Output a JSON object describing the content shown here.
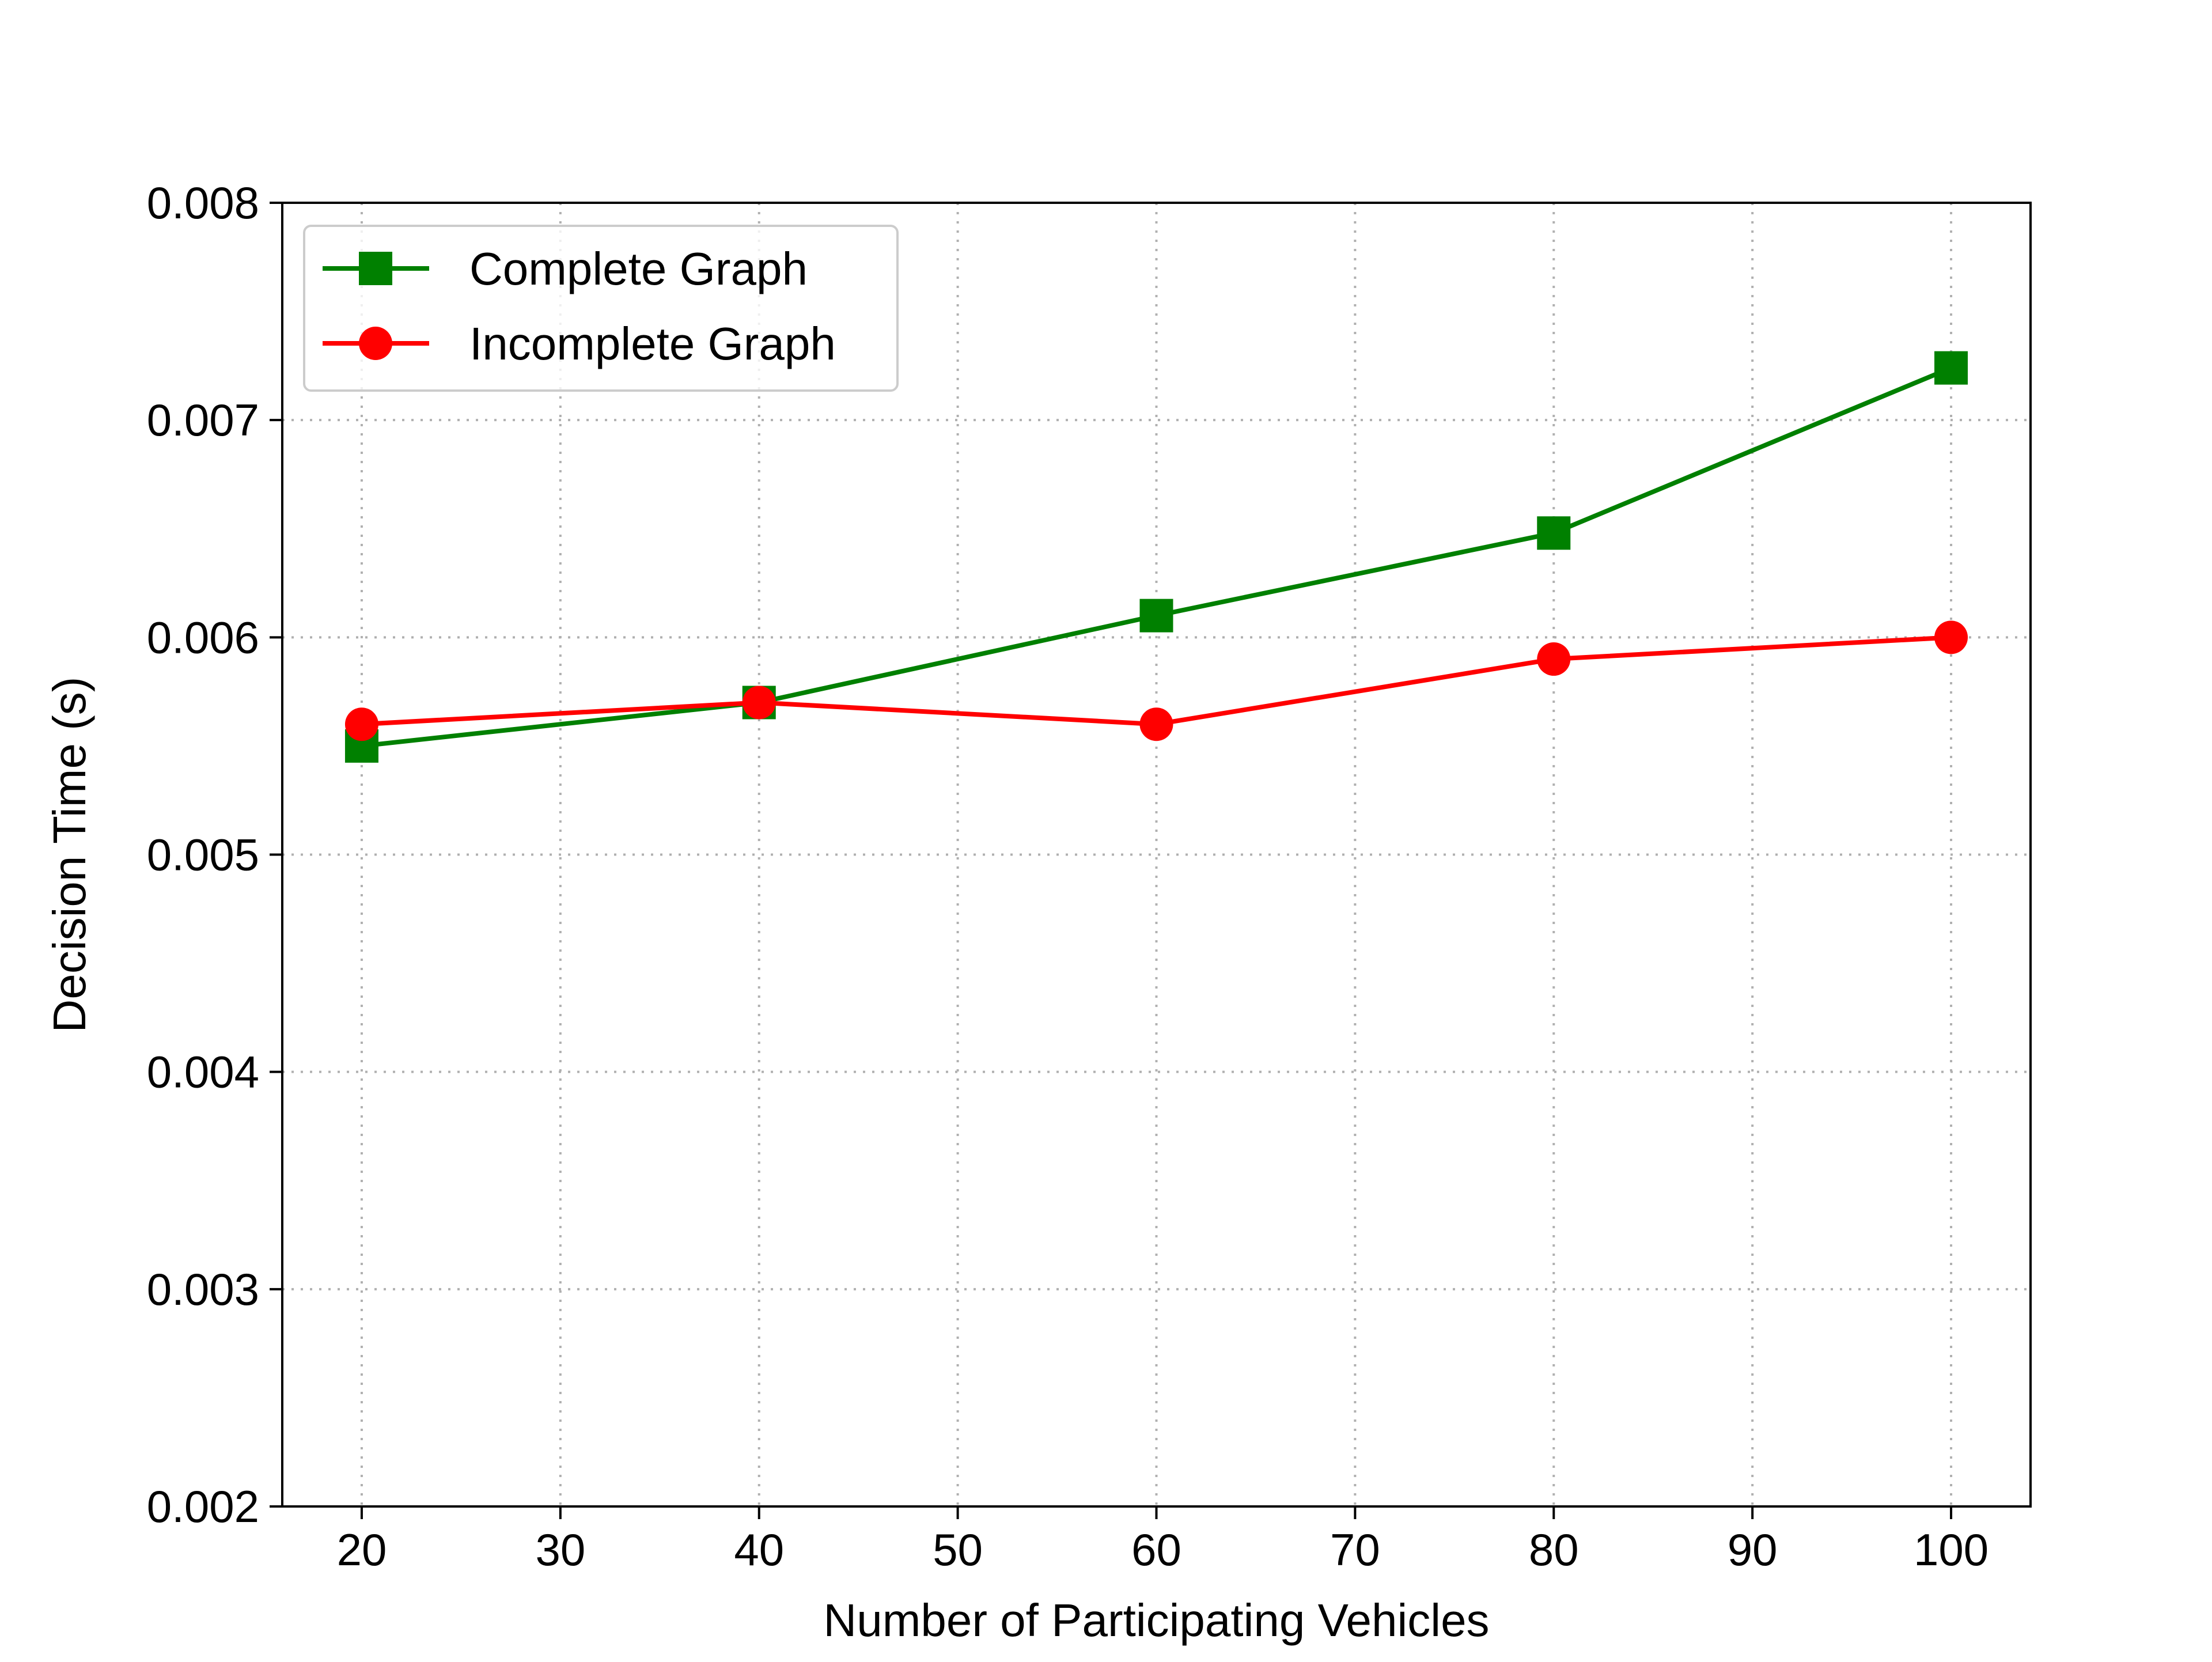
{
  "chart_data": {
    "type": "line",
    "title": "",
    "xlabel": "Number of Participating Vehicles",
    "ylabel": "Decision Time (s)",
    "xlim": [
      16,
      104
    ],
    "ylim": [
      0.002,
      0.008
    ],
    "xticks": [
      20,
      30,
      40,
      50,
      60,
      70,
      80,
      90,
      100
    ],
    "xtick_labels": [
      "20",
      "30",
      "40",
      "50",
      "60",
      "70",
      "80",
      "90",
      "100"
    ],
    "yticks": [
      0.002,
      0.003,
      0.004,
      0.005,
      0.006,
      0.007,
      0.008
    ],
    "ytick_labels": [
      "0.002",
      "0.003",
      "0.004",
      "0.005",
      "0.006",
      "0.007",
      "0.008"
    ],
    "grid": true,
    "legend_position": "top-left",
    "series": [
      {
        "name": "Complete Graph",
        "color": "#008000",
        "marker": "square",
        "x": [
          20,
          40,
          60,
          80,
          100
        ],
        "y": [
          0.0055,
          0.0057,
          0.0061,
          0.00648,
          0.00724
        ]
      },
      {
        "name": "Incomplete Graph",
        "color": "#ff0000",
        "marker": "circle",
        "x": [
          20,
          40,
          60,
          80,
          100
        ],
        "y": [
          0.0056,
          0.0057,
          0.0056,
          0.0059,
          0.006
        ]
      }
    ]
  }
}
